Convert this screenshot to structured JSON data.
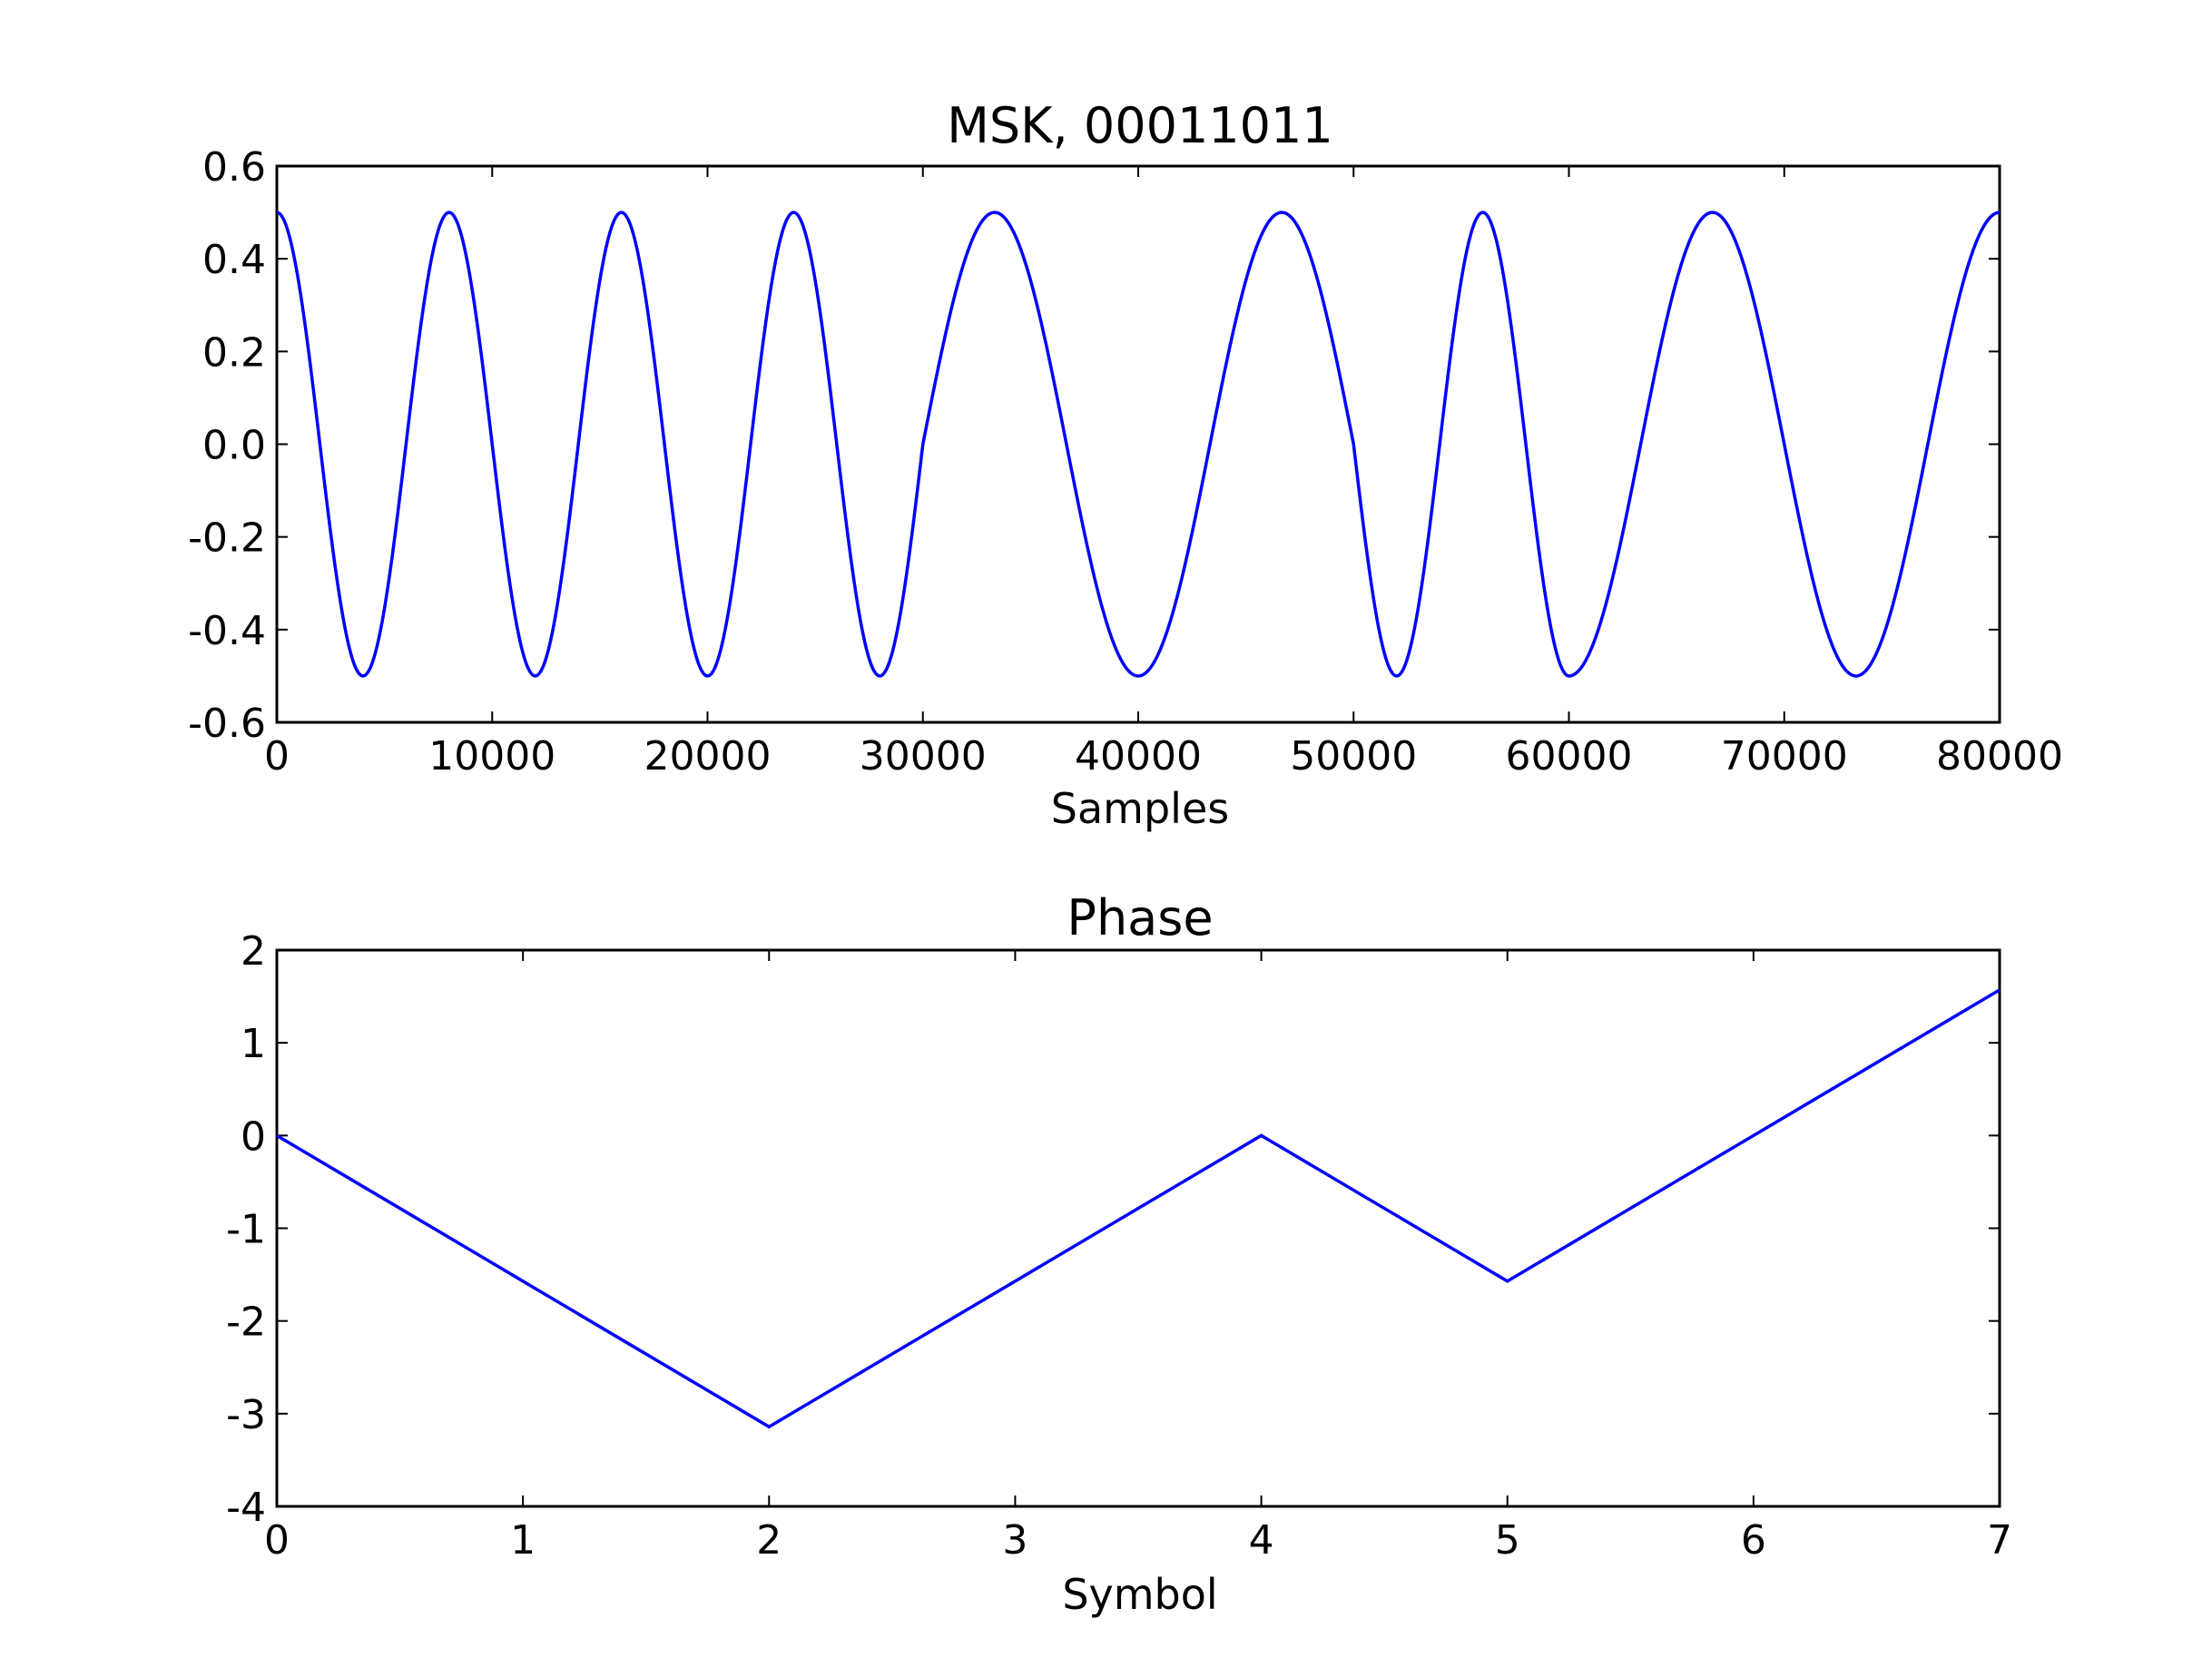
{
  "chart_data": [
    {
      "type": "line",
      "title": "MSK, 00011011",
      "xlabel": "Samples",
      "ylabel": "",
      "xlim": [
        0,
        80000
      ],
      "ylim": [
        -0.6,
        0.6
      ],
      "xticks": [
        0,
        10000,
        20000,
        30000,
        40000,
        50000,
        60000,
        70000,
        80000
      ],
      "xtick_labels": [
        "0",
        "10000",
        "20000",
        "30000",
        "40000",
        "50000",
        "60000",
        "70000",
        "80000"
      ],
      "yticks": [
        0.6,
        0.4,
        0.2,
        0.0,
        -0.2,
        -0.4,
        -0.6
      ],
      "ytick_labels": [
        "0.6",
        "0.4",
        "0.2",
        "0.0",
        "-0.2",
        "-0.4",
        "-0.6"
      ],
      "grid": false,
      "color": "#0000ff",
      "amplitude": 0.5,
      "symbols_per_plot": 8,
      "samples_per_symbol": 10000,
      "cycles_per_symbol": [
        1.25,
        1.25,
        1.25,
        0.75,
        0.75,
        1.25,
        0.75,
        0.75
      ],
      "series": [
        {
          "function": "0.5*cos(phase)"
        }
      ]
    },
    {
      "type": "line",
      "title": "Phase",
      "xlabel": "Symbol",
      "ylabel": "",
      "xlim": [
        0,
        7
      ],
      "ylim": [
        -4,
        2
      ],
      "xticks": [
        0,
        1,
        2,
        3,
        4,
        5,
        6,
        7
      ],
      "xtick_labels": [
        "0",
        "1",
        "2",
        "3",
        "4",
        "5",
        "6",
        "7"
      ],
      "yticks": [
        2,
        1,
        0,
        -1,
        -2,
        -3,
        -4
      ],
      "ytick_labels": [
        "2",
        "1",
        "0",
        "-1",
        "-2",
        "-3",
        "-4"
      ],
      "grid": false,
      "color": "#0000ff",
      "series": [
        {
          "x": [
            0,
            1,
            2,
            3,
            4,
            5,
            6,
            7
          ],
          "y": [
            0,
            -1.5708,
            -3.1416,
            -1.5708,
            0,
            -1.5708,
            0,
            1.5708
          ]
        }
      ]
    }
  ]
}
